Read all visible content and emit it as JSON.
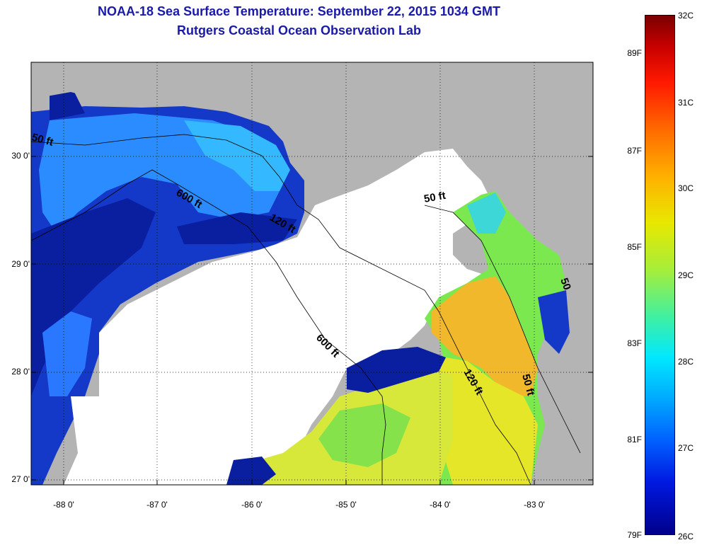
{
  "title_line1": "NOAA-18 Sea Surface Temperature:  September 22, 2015 1034 GMT",
  "title_line2": "Rutgers Coastal Ocean Observation Lab",
  "map": {
    "y_ticks": [
      "30 0'",
      "29 0'",
      "28 0'",
      "27 0'"
    ],
    "x_ticks": [
      "-88 0'",
      "-87 0'",
      "-86 0'",
      "-85 0'",
      "-84 0'",
      "-83 0'"
    ],
    "contour_labels": {
      "c50_west": "50 ft",
      "c600_north": "600 ft",
      "c120_north": "120 ft",
      "c50_east": "50 ft",
      "c600_south": "600 ft",
      "c120_south": "120 ft",
      "c50_south": "50 ft",
      "c50_far": "50"
    },
    "colors": {
      "land": "#b4b4b4",
      "no_data": "#ffffff",
      "cold": "#0a1ea0",
      "cool": "#2a78ff",
      "mid": "#1ec8f0",
      "warm_green": "#7ae84e",
      "warm_yellow": "#e6e628",
      "warm_orange": "#f5b428"
    }
  },
  "colorbar": {
    "celsius": [
      "32C",
      "31C",
      "30C",
      "29C",
      "28C",
      "27C",
      "26C"
    ],
    "fahrenheit": [
      "89F",
      "87F",
      "85F",
      "83F",
      "81F",
      "79F"
    ]
  }
}
